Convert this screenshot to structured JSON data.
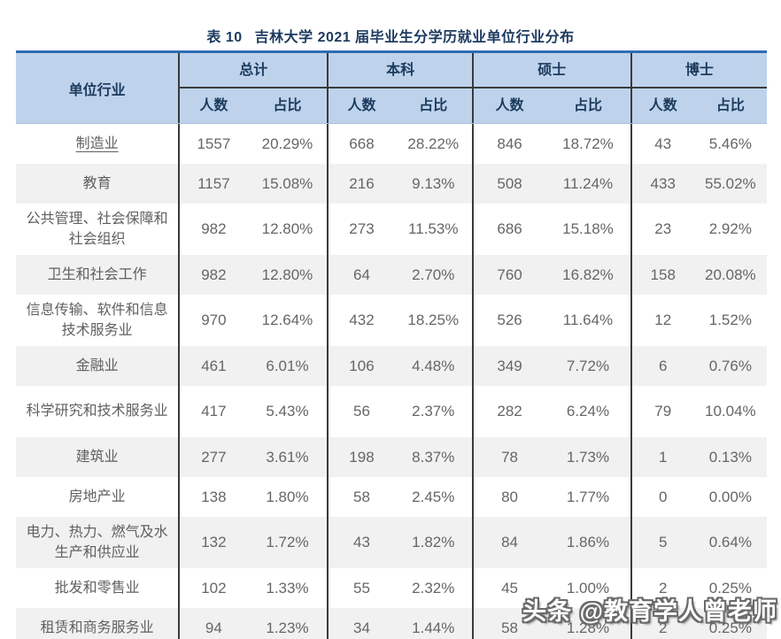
{
  "title": {
    "tag": "表 10",
    "text": "吉林大学 2021 届毕业生分学历就业单位行业分布"
  },
  "table": {
    "corner_header": "单位行业",
    "groups": [
      {
        "label": "总计"
      },
      {
        "label": "本科"
      },
      {
        "label": "硕士"
      },
      {
        "label": "博士"
      }
    ],
    "sub_headers": [
      "人数",
      "占比"
    ],
    "rows": [
      {
        "industry": "制造业",
        "underlined": true,
        "values": [
          "1557",
          "20.29%",
          "668",
          "28.22%",
          "846",
          "18.72%",
          "43",
          "5.46%"
        ]
      },
      {
        "industry": "教育",
        "values": [
          "1157",
          "15.08%",
          "216",
          "9.13%",
          "508",
          "11.24%",
          "433",
          "55.02%"
        ]
      },
      {
        "industry": "公共管理、社会保障和社会组织",
        "values": [
          "982",
          "12.80%",
          "273",
          "11.53%",
          "686",
          "15.18%",
          "23",
          "2.92%"
        ]
      },
      {
        "industry": "卫生和社会工作",
        "values": [
          "982",
          "12.80%",
          "64",
          "2.70%",
          "760",
          "16.82%",
          "158",
          "20.08%"
        ]
      },
      {
        "industry": "信息传输、软件和信息技术服务业",
        "values": [
          "970",
          "12.64%",
          "432",
          "18.25%",
          "526",
          "11.64%",
          "12",
          "1.52%"
        ]
      },
      {
        "industry": "金融业",
        "values": [
          "461",
          "6.01%",
          "106",
          "4.48%",
          "349",
          "7.72%",
          "6",
          "0.76%"
        ]
      },
      {
        "industry": "科学研究和技术服务业",
        "values": [
          "417",
          "5.43%",
          "56",
          "2.37%",
          "282",
          "6.24%",
          "79",
          "10.04%"
        ]
      },
      {
        "industry": "建筑业",
        "values": [
          "277",
          "3.61%",
          "198",
          "8.37%",
          "78",
          "1.73%",
          "1",
          "0.13%"
        ]
      },
      {
        "industry": "房地产业",
        "values": [
          "138",
          "1.80%",
          "58",
          "2.45%",
          "80",
          "1.77%",
          "0",
          "0.00%"
        ]
      },
      {
        "industry": "电力、热力、燃气及水生产和供应业",
        "values": [
          "132",
          "1.72%",
          "43",
          "1.82%",
          "84",
          "1.86%",
          "5",
          "0.64%"
        ]
      },
      {
        "industry": "批发和零售业",
        "values": [
          "102",
          "1.33%",
          "55",
          "2.32%",
          "45",
          "1.00%",
          "2",
          "0.25%"
        ]
      },
      {
        "industry": "租赁和商务服务业",
        "values": [
          "94",
          "1.23%",
          "34",
          "1.44%",
          "58",
          "1.28%",
          "2",
          "0.25%"
        ]
      }
    ]
  },
  "watermark": "头条 @教育学人曾老师",
  "colors": {
    "head_bg": "#bed3eb",
    "head_text": "#1c3a5e",
    "top_border": "#2f6cb3",
    "line": "#3a3a3a",
    "head_edge": "#a9bdd8",
    "body_text": "#666666",
    "industry_text": "#606060",
    "stripe": "#f1f1f1",
    "watermark_outline": "#6a6a6a"
  }
}
